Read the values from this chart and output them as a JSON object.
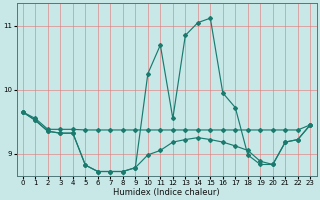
{
  "xlabel": "Humidex (Indice chaleur)",
  "bg_color": "#c8e8e8",
  "line_color": "#1a7a6e",
  "grid_color": "#e08080",
  "xlim_min": -0.5,
  "xlim_max": 23.5,
  "ylim_min": 8.65,
  "ylim_max": 11.35,
  "yticks": [
    9,
    10,
    11
  ],
  "xticks": [
    0,
    1,
    2,
    3,
    4,
    5,
    6,
    7,
    8,
    9,
    10,
    11,
    12,
    13,
    14,
    15,
    16,
    17,
    18,
    19,
    20,
    21,
    22,
    23
  ],
  "curveA_x": [
    0,
    1,
    2,
    3,
    4,
    5,
    6,
    7,
    8,
    9,
    10,
    11,
    12,
    13,
    14,
    15,
    16,
    17,
    18,
    19,
    20,
    21,
    22,
    23
  ],
  "curveA_y": [
    9.65,
    9.55,
    9.38,
    9.38,
    9.38,
    9.37,
    9.37,
    9.37,
    9.37,
    9.37,
    9.37,
    9.37,
    9.37,
    9.37,
    9.37,
    9.37,
    9.37,
    9.37,
    9.37,
    9.37,
    9.37,
    9.37,
    9.37,
    9.45
  ],
  "curveB_x": [
    0,
    1,
    2,
    3,
    4,
    5,
    6,
    7,
    8,
    9,
    10,
    11,
    12,
    13,
    14,
    15,
    16,
    17,
    18,
    19,
    20,
    21,
    22,
    23
  ],
  "curveB_y": [
    9.65,
    9.52,
    9.35,
    9.32,
    9.32,
    8.82,
    8.72,
    8.72,
    8.72,
    8.78,
    8.98,
    9.05,
    9.18,
    9.22,
    9.25,
    9.22,
    9.18,
    9.12,
    9.05,
    8.88,
    8.83,
    9.18,
    9.22,
    9.45
  ],
  "curveC_x": [
    0,
    1,
    2,
    3,
    4,
    5,
    6,
    7,
    8,
    9,
    10,
    11,
    12,
    13,
    14,
    15,
    16,
    17,
    18,
    19,
    20,
    21,
    22,
    23
  ],
  "curveC_y": [
    9.65,
    9.52,
    9.35,
    9.32,
    9.32,
    8.82,
    8.72,
    8.72,
    8.72,
    8.78,
    10.25,
    10.7,
    9.55,
    10.85,
    11.05,
    11.12,
    9.95,
    9.72,
    8.98,
    8.83,
    8.83,
    9.18,
    9.22,
    9.45
  ]
}
